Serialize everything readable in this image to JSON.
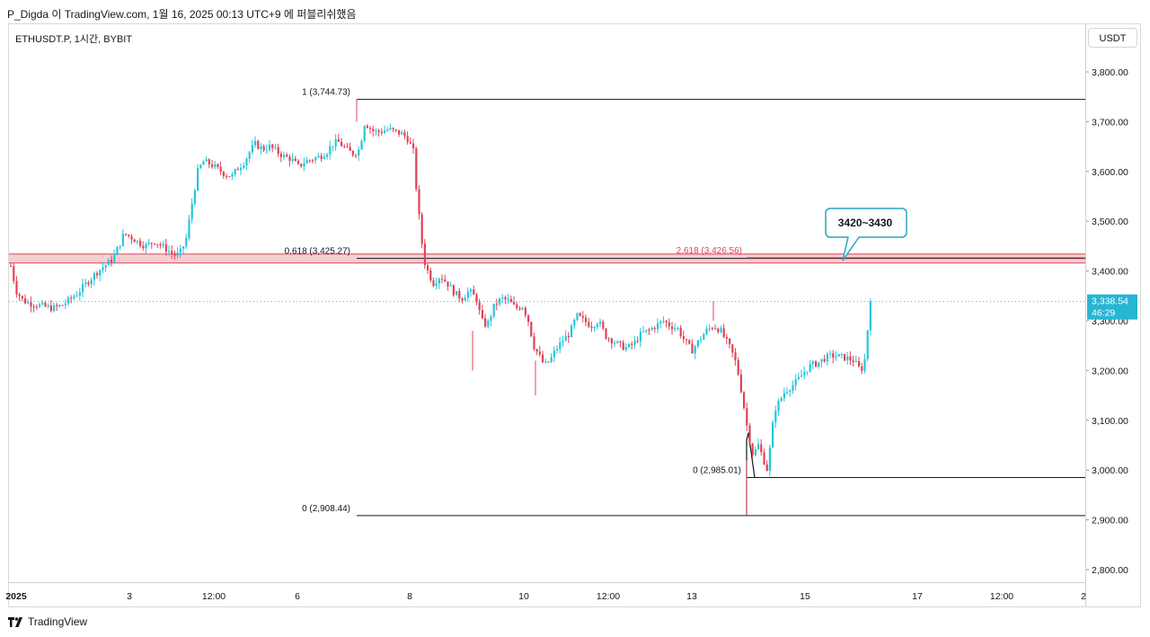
{
  "header": {
    "author_line": "P_Digda 이 TradingView.com, 1월 16, 2025 00:13 UTC+9 에 퍼블리쉬했음"
  },
  "symbol_line": "ETHUSDT.P, 1시간, BYBIT",
  "currency_label": "USDT",
  "footer": {
    "brand": "TradingView"
  },
  "colors": {
    "background": "#fdf7dc",
    "up": "#26c6da",
    "down": "#e04356",
    "zone_fill": "#f7c5c9",
    "zone_line": "#e04356",
    "fib_line": "#131722",
    "last_price_bg": "#26b6d4",
    "callout_border": "#26a6bf"
  },
  "chart_data": {
    "type": "candlestick",
    "ylim": [
      2780,
      3840
    ],
    "y_ticks": [
      {
        "value": 3800,
        "label": "3,800.00"
      },
      {
        "value": 3700,
        "label": "3,700.00"
      },
      {
        "value": 3600,
        "label": "3,600.00"
      },
      {
        "value": 3500,
        "label": "3,500.00"
      },
      {
        "value": 3400,
        "label": "3,400.00"
      },
      {
        "value": 3300,
        "label": "3,300.00"
      },
      {
        "value": 3200,
        "label": "3,200.00"
      },
      {
        "value": 3100,
        "label": "3,100.00"
      },
      {
        "value": 3000,
        "label": "3,000.00"
      },
      {
        "value": 2900,
        "label": "2,900.00"
      },
      {
        "value": 2800,
        "label": "2,800.00"
      }
    ],
    "x_ticks": [
      "2025",
      "3",
      "12:00",
      "6",
      "8",
      "10",
      "12:00",
      "13",
      "15",
      "17",
      "12:00",
      "2"
    ],
    "last_price": {
      "price": 3338.54,
      "label": "3,338.54",
      "countdown": "46:29"
    },
    "zone": {
      "low": 3416,
      "high": 3434,
      "label": "3420~3430"
    },
    "fib_levels": [
      {
        "label": "1 (3,744.73)",
        "value": 3744.73
      },
      {
        "label": "0.618 (3,425.27)",
        "value": 3425.27
      },
      {
        "label": "0 (2,908.44)",
        "value": 2908.44
      },
      {
        "label": "0 (2,985.01)",
        "value": 2985.01
      },
      {
        "label": "2.618 (3,426.56)",
        "value": 3426.56
      }
    ],
    "path_points": [
      [
        0,
        3410
      ],
      [
        6,
        3360
      ],
      [
        14,
        3340
      ],
      [
        22,
        3335
      ],
      [
        34,
        3330
      ],
      [
        46,
        3325
      ],
      [
        56,
        3330
      ],
      [
        64,
        3340
      ],
      [
        74,
        3355
      ],
      [
        84,
        3375
      ],
      [
        94,
        3395
      ],
      [
        104,
        3410
      ],
      [
        114,
        3425
      ],
      [
        120,
        3450
      ],
      [
        126,
        3475
      ],
      [
        132,
        3470
      ],
      [
        140,
        3460
      ],
      [
        150,
        3450
      ],
      [
        160,
        3460
      ],
      [
        168,
        3450
      ],
      [
        176,
        3440
      ],
      [
        184,
        3430
      ],
      [
        190,
        3440
      ],
      [
        196,
        3470
      ],
      [
        200,
        3520
      ],
      [
        204,
        3560
      ],
      [
        208,
        3600
      ],
      [
        214,
        3620
      ],
      [
        222,
        3615
      ],
      [
        230,
        3605
      ],
      [
        238,
        3595
      ],
      [
        246,
        3590
      ],
      [
        252,
        3605
      ],
      [
        260,
        3620
      ],
      [
        266,
        3640
      ],
      [
        272,
        3655
      ],
      [
        280,
        3645
      ],
      [
        288,
        3650
      ],
      [
        296,
        3640
      ],
      [
        304,
        3630
      ],
      [
        312,
        3625
      ],
      [
        320,
        3610
      ],
      [
        328,
        3620
      ],
      [
        336,
        3625
      ],
      [
        344,
        3630
      ],
      [
        352,
        3640
      ],
      [
        358,
        3655
      ],
      [
        364,
        3660
      ],
      [
        370,
        3650
      ],
      [
        376,
        3640
      ],
      [
        382,
        3635
      ],
      [
        388,
        3645
      ],
      [
        394,
        3700
      ],
      [
        398,
        3690
      ],
      [
        404,
        3680
      ],
      [
        412,
        3680
      ],
      [
        420,
        3685
      ],
      [
        428,
        3680
      ],
      [
        436,
        3675
      ],
      [
        442,
        3665
      ],
      [
        448,
        3640
      ],
      [
        452,
        3550
      ],
      [
        456,
        3480
      ],
      [
        460,
        3420
      ],
      [
        464,
        3400
      ],
      [
        470,
        3375
      ],
      [
        478,
        3390
      ],
      [
        486,
        3375
      ],
      [
        494,
        3355
      ],
      [
        502,
        3345
      ],
      [
        510,
        3360
      ],
      [
        518,
        3345
      ],
      [
        524,
        3300
      ],
      [
        530,
        3290
      ],
      [
        538,
        3330
      ],
      [
        546,
        3345
      ],
      [
        554,
        3340
      ],
      [
        562,
        3325
      ],
      [
        570,
        3330
      ],
      [
        576,
        3300
      ],
      [
        582,
        3250
      ],
      [
        588,
        3230
      ],
      [
        594,
        3210
      ],
      [
        600,
        3220
      ],
      [
        606,
        3240
      ],
      [
        614,
        3260
      ],
      [
        622,
        3275
      ],
      [
        630,
        3310
      ],
      [
        638,
        3300
      ],
      [
        646,
        3290
      ],
      [
        654,
        3300
      ],
      [
        662,
        3270
      ],
      [
        670,
        3260
      ],
      [
        678,
        3250
      ],
      [
        686,
        3245
      ],
      [
        694,
        3255
      ],
      [
        702,
        3275
      ],
      [
        710,
        3280
      ],
      [
        718,
        3290
      ],
      [
        726,
        3300
      ],
      [
        734,
        3290
      ],
      [
        742,
        3285
      ],
      [
        750,
        3260
      ],
      [
        758,
        3240
      ],
      [
        766,
        3260
      ],
      [
        774,
        3280
      ],
      [
        782,
        3290
      ],
      [
        790,
        3280
      ],
      [
        796,
        3260
      ],
      [
        802,
        3240
      ],
      [
        808,
        3210
      ],
      [
        814,
        3150
      ],
      [
        820,
        3080
      ],
      [
        826,
        3030
      ],
      [
        832,
        3050
      ],
      [
        838,
        3020
      ],
      [
        842,
        3000
      ],
      [
        846,
        3060
      ],
      [
        850,
        3120
      ],
      [
        856,
        3140
      ],
      [
        862,
        3160
      ],
      [
        870,
        3170
      ],
      [
        878,
        3185
      ],
      [
        884,
        3200
      ],
      [
        890,
        3210
      ],
      [
        898,
        3215
      ],
      [
        906,
        3225
      ],
      [
        914,
        3230
      ],
      [
        922,
        3228
      ],
      [
        930,
        3225
      ],
      [
        938,
        3220
      ],
      [
        946,
        3200
      ],
      [
        950,
        3215
      ],
      [
        954,
        3290
      ],
      [
        958,
        3338.54
      ]
    ]
  }
}
